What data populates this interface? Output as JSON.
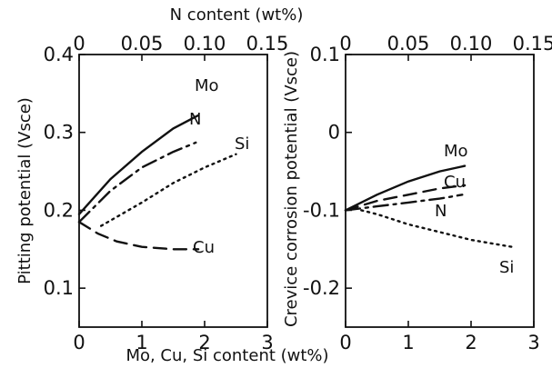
{
  "figure": {
    "top_axis_title": "N content (wt%)",
    "bottom_axis_title": "Mo, Cu, Si content (wt%)"
  },
  "chart_data": [
    {
      "type": "line",
      "id": "pitting",
      "ylabel": "Pitting potential (Vsce)",
      "xlabel": "Mo, Cu, Si content (wt%)",
      "x2label": "N content (wt%)",
      "xlim": [
        0,
        3
      ],
      "xticks": [
        "0",
        "1",
        "2",
        "3"
      ],
      "x2lim": [
        0,
        0.15
      ],
      "x2ticks": [
        "0",
        "0.05",
        "0.10",
        "0.15"
      ],
      "ylim": [
        0.05,
        0.4
      ],
      "yticks": [
        "0.1",
        "0.2",
        "0.3",
        "0.4"
      ],
      "grid": false,
      "series": [
        {
          "name": "Mo",
          "style": "solid",
          "axis": "bottom",
          "x": [
            0,
            0.5,
            1.0,
            1.5,
            1.9
          ],
          "y": [
            0.195,
            0.24,
            0.275,
            0.305,
            0.322
          ]
        },
        {
          "name": "N",
          "style": "dashdot",
          "axis": "top",
          "x": [
            0.0,
            0.025,
            0.05,
            0.075,
            0.093
          ],
          "y": [
            0.185,
            0.225,
            0.255,
            0.275,
            0.287
          ]
        },
        {
          "name": "Si",
          "style": "dotted",
          "axis": "bottom",
          "x": [
            0.35,
            1.0,
            1.5,
            2.0,
            2.5
          ],
          "y": [
            0.18,
            0.21,
            0.235,
            0.255,
            0.272
          ]
        },
        {
          "name": "Cu",
          "style": "dashed",
          "axis": "bottom",
          "x": [
            0,
            0.3,
            0.6,
            1.0,
            1.5,
            1.9
          ],
          "y": [
            0.185,
            0.17,
            0.16,
            0.153,
            0.15,
            0.15
          ]
        }
      ]
    },
    {
      "type": "line",
      "id": "crevice",
      "ylabel": "Crevice corrosion potential (Vsce)",
      "xlabel": "Mo, Cu, Si content (wt%)",
      "x2label": "N content (wt%)",
      "xlim": [
        0,
        3
      ],
      "xticks": [
        "0",
        "1",
        "2",
        "3"
      ],
      "x2lim": [
        0,
        0.15
      ],
      "x2ticks": [
        "0",
        "0.05",
        "0.10",
        "0.15"
      ],
      "ylim": [
        -0.25,
        0.1
      ],
      "yticks": [
        "0.1",
        "0",
        "-0.1",
        "-0.2"
      ],
      "grid": false,
      "series": [
        {
          "name": "Mo",
          "style": "solid",
          "axis": "bottom",
          "x": [
            0,
            0.5,
            1.0,
            1.5,
            1.9
          ],
          "y": [
            -0.1,
            -0.08,
            -0.063,
            -0.05,
            -0.043
          ]
        },
        {
          "name": "Cu",
          "style": "dashed",
          "axis": "bottom",
          "x": [
            0,
            0.5,
            1.0,
            1.5,
            1.9
          ],
          "y": [
            -0.1,
            -0.088,
            -0.08,
            -0.072,
            -0.068
          ]
        },
        {
          "name": "N",
          "style": "dashdot",
          "axis": "top",
          "x": [
            0.0,
            0.025,
            0.05,
            0.075,
            0.093
          ],
          "y": [
            -0.1,
            -0.095,
            -0.09,
            -0.085,
            -0.08
          ]
        },
        {
          "name": "Si",
          "style": "dotted",
          "axis": "bottom",
          "x": [
            0.25,
            0.5,
            1.0,
            1.5,
            2.0,
            2.65
          ],
          "y": [
            -0.1,
            -0.105,
            -0.118,
            -0.128,
            -0.138,
            -0.147
          ]
        }
      ]
    }
  ]
}
